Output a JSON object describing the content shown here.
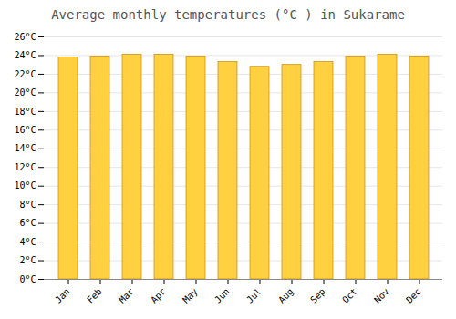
{
  "chart_data": {
    "type": "bar",
    "title": "Average monthly temperatures (°C ) in Sukarame",
    "categories": [
      "Jan",
      "Feb",
      "Mar",
      "Apr",
      "May",
      "Jun",
      "Jul",
      "Aug",
      "Sep",
      "Oct",
      "Nov",
      "Dec"
    ],
    "values": [
      23.8,
      23.9,
      24.1,
      24.1,
      23.9,
      23.3,
      22.8,
      23.0,
      23.3,
      23.9,
      24.1,
      23.9
    ],
    "color": "#FFD040",
    "ylim": [
      0,
      26
    ],
    "yticks": [
      {
        "value": 0,
        "label": "0°C"
      },
      {
        "value": 2,
        "label": "2°C"
      },
      {
        "value": 4,
        "label": "4°C"
      },
      {
        "value": 6,
        "label": "6°C"
      },
      {
        "value": 8,
        "label": "8°C"
      },
      {
        "value": 10,
        "label": "10°C"
      },
      {
        "value": 12,
        "label": "12°C"
      },
      {
        "value": 14,
        "label": "14°C"
      },
      {
        "value": 16,
        "label": "16°C"
      },
      {
        "value": 18,
        "label": "18°C"
      },
      {
        "value": 20,
        "label": "20°C"
      },
      {
        "value": 22,
        "label": "22°C"
      },
      {
        "value": 24,
        "label": "24°C"
      },
      {
        "value": 26,
        "label": "26°C"
      }
    ],
    "grid": true
  }
}
